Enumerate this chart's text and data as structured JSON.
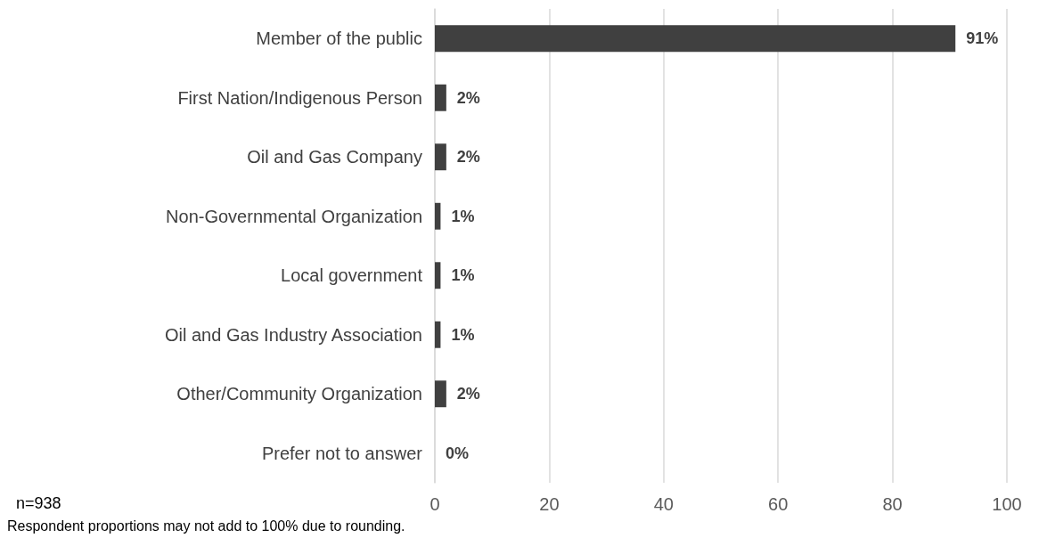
{
  "chart_data": {
    "type": "bar",
    "orientation": "horizontal",
    "categories": [
      "Member of the public",
      "First Nation/Indigenous Person",
      "Oil and Gas Company",
      "Non-Governmental Organization",
      "Local government",
      "Oil and Gas Industry Association",
      "Other/Community Organization",
      "Prefer not to answer"
    ],
    "values": [
      91,
      2,
      2,
      1,
      1,
      1,
      2,
      0
    ],
    "value_labels": [
      "91%",
      "2%",
      "2%",
      "1%",
      "1%",
      "1%",
      "2%",
      "0%"
    ],
    "color": "#404040",
    "xlim": [
      0,
      100
    ],
    "xticks": [
      0,
      20,
      40,
      60,
      80,
      100
    ],
    "grid": "x",
    "annotations": [
      "n=938",
      "Respondent proportions may not add to 100% due to rounding."
    ]
  }
}
